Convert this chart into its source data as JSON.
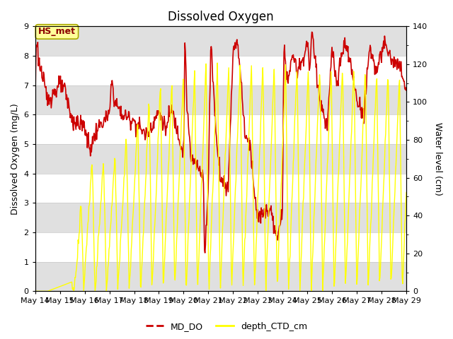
{
  "title": "Dissolved Oxygen",
  "ylabel_left": "Dissolved Oxygen (mg/L)",
  "ylabel_right": "Water level (cm)",
  "ylim_left": [
    0.0,
    9.0
  ],
  "ylim_right": [
    0,
    140
  ],
  "yticks_left": [
    0.0,
    1.0,
    2.0,
    3.0,
    4.0,
    5.0,
    6.0,
    7.0,
    8.0,
    9.0
  ],
  "yticks_right": [
    0,
    20,
    40,
    60,
    80,
    100,
    120,
    140
  ],
  "xtick_labels": [
    "May 14",
    "May 15",
    "May 16",
    "May 17",
    "May 18",
    "May 19",
    "May 20",
    "May 21",
    "May 22",
    "May 23",
    "May 24",
    "May 25",
    "May 26",
    "May 27",
    "May 28",
    "May 29"
  ],
  "md_do_color": "#cc0000",
  "depth_ctd_color": "#ffff00",
  "annotation_text": "HS_met",
  "annotation_bg": "#ffff99",
  "annotation_border": "#aaaa00",
  "legend_labels": [
    "MD_DO",
    "depth_CTD_cm"
  ],
  "bg_stripe_color": "#e0e0e0",
  "grid_color": "#c8c8c8",
  "title_fontsize": 12,
  "label_fontsize": 9,
  "tick_fontsize": 8
}
